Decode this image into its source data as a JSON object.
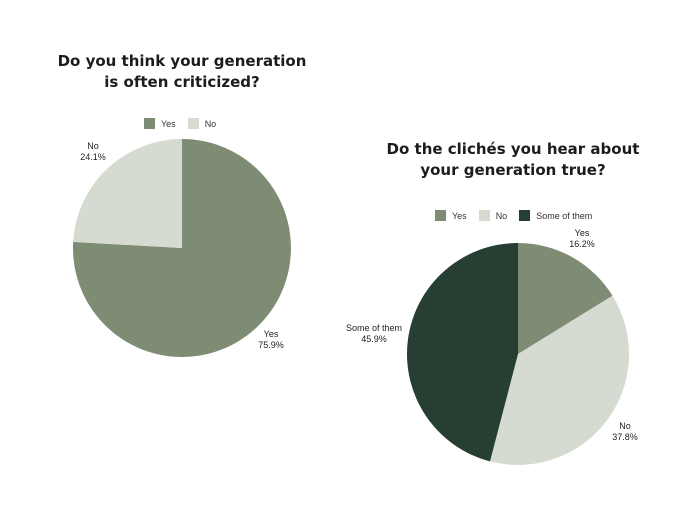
{
  "chart_data": [
    {
      "type": "pie",
      "title": "Do you think your generation\nis often criticized?",
      "legend_position": "top",
      "slices": [
        {
          "label": "Yes",
          "value": 75.9,
          "value_label": "75.9%",
          "color": "#7f8c74"
        },
        {
          "label": "No",
          "value": 24.1,
          "value_label": "24.1%",
          "color": "#d5dbd0"
        }
      ]
    },
    {
      "type": "pie",
      "title": "Do the clichés you hear about\nyour generation true?",
      "legend_position": "top",
      "slices": [
        {
          "label": "Yes",
          "value": 16.2,
          "value_label": "16.2%",
          "color": "#7f8c74"
        },
        {
          "label": "No",
          "value": 37.8,
          "value_label": "37.8%",
          "color": "#d5dbd0"
        },
        {
          "label": "Some of them",
          "value": 45.9,
          "value_label": "45.9%",
          "color": "#263f32"
        }
      ]
    }
  ]
}
